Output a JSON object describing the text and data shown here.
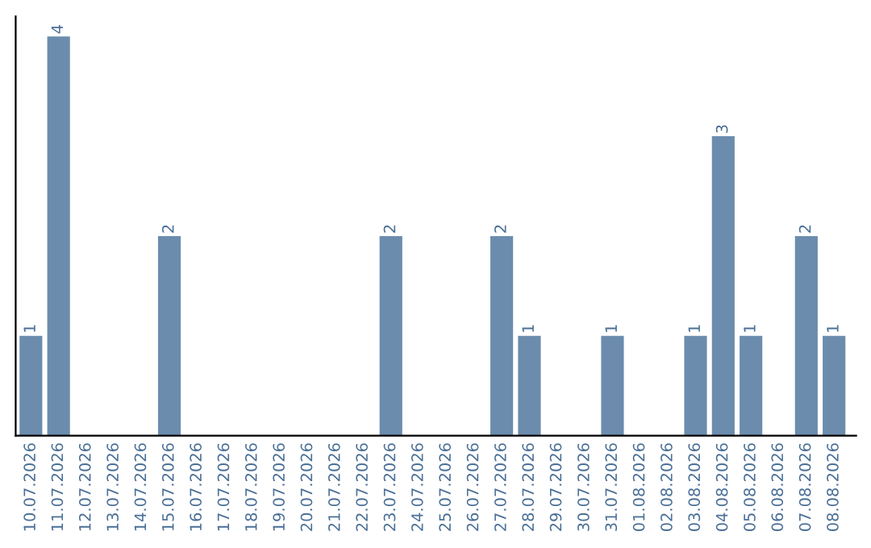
{
  "chart_data": {
    "type": "bar",
    "categories": [
      "10.07.2026",
      "11.07.2026",
      "12.07.2026",
      "13.07.2026",
      "14.07.2026",
      "15.07.2026",
      "16.07.2026",
      "17.07.2026",
      "18.07.2026",
      "19.07.2026",
      "20.07.2026",
      "21.07.2026",
      "22.07.2026",
      "23.07.2026",
      "24.07.2026",
      "25.07.2026",
      "26.07.2026",
      "27.07.2026",
      "28.07.2026",
      "29.07.2026",
      "30.07.2026",
      "31.07.2026",
      "01.08.2026",
      "02.08.2026",
      "03.08.2026",
      "04.08.2026",
      "05.08.2026",
      "06.08.2026",
      "07.08.2026",
      "08.08.2026"
    ],
    "values": [
      1,
      4,
      0,
      0,
      0,
      2,
      0,
      0,
      0,
      0,
      0,
      0,
      0,
      2,
      0,
      0,
      0,
      2,
      1,
      0,
      0,
      1,
      0,
      0,
      1,
      3,
      1,
      0,
      2,
      1
    ],
    "value_labels": [
      "1",
      "4",
      null,
      null,
      null,
      "2",
      null,
      null,
      null,
      null,
      null,
      null,
      null,
      "2",
      null,
      null,
      null,
      "2",
      "1",
      null,
      null,
      "1",
      null,
      null,
      "1",
      "3",
      "1",
      null,
      "2",
      "1"
    ],
    "color": "#6b8cad",
    "relative": false,
    "grid": false,
    "legend": false
  }
}
